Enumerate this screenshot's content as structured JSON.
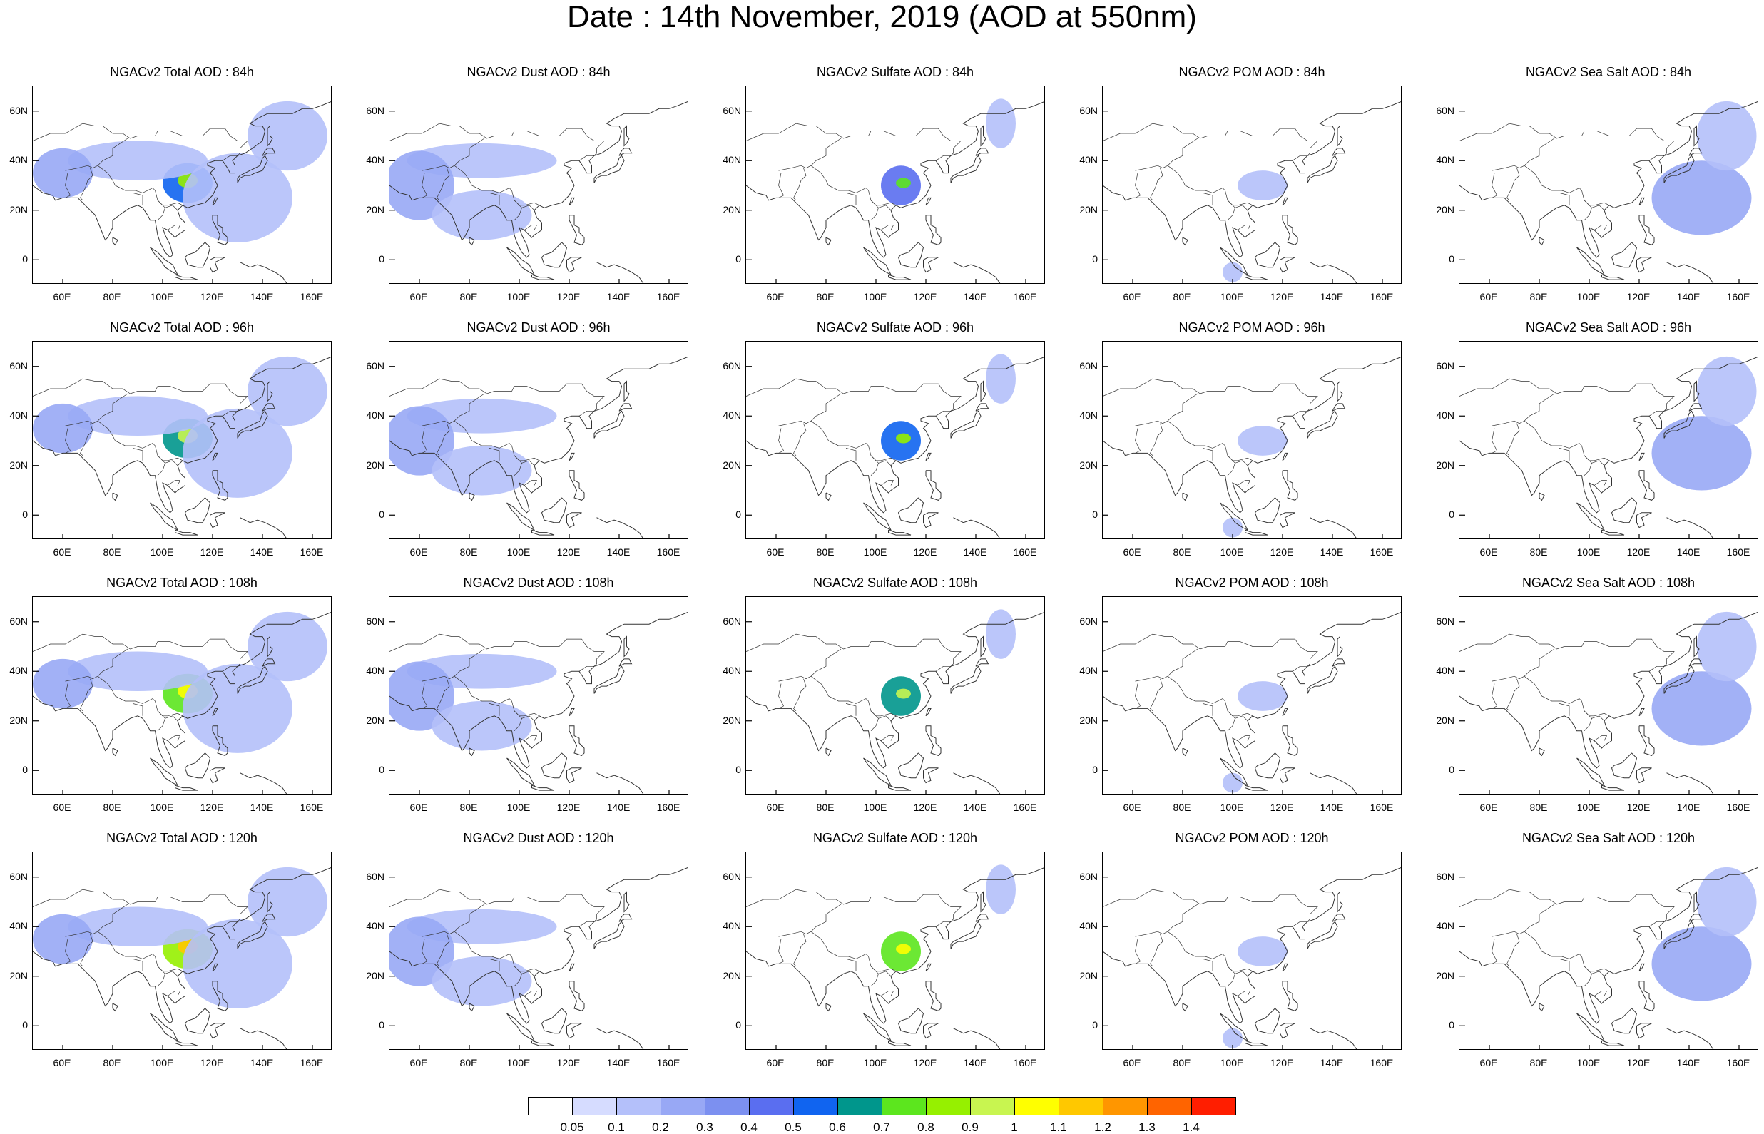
{
  "figure": {
    "title": "Date : 14th November, 2019 (AOD at 550nm)"
  },
  "panels": [
    {
      "title": "NGACv2 Total AOD : 84h",
      "species": "total",
      "hour": 84
    },
    {
      "title": "NGACv2 Dust AOD : 84h",
      "species": "dust",
      "hour": 84
    },
    {
      "title": "NGACv2 Sulfate AOD : 84h",
      "species": "sulfate",
      "hour": 84
    },
    {
      "title": "NGACv2 POM AOD : 84h",
      "species": "pom",
      "hour": 84
    },
    {
      "title": "NGACv2 Sea Salt AOD : 84h",
      "species": "seasalt",
      "hour": 84
    },
    {
      "title": "NGACv2 Total AOD : 96h",
      "species": "total",
      "hour": 96
    },
    {
      "title": "NGACv2 Dust AOD : 96h",
      "species": "dust",
      "hour": 96
    },
    {
      "title": "NGACv2 Sulfate AOD : 96h",
      "species": "sulfate",
      "hour": 96
    },
    {
      "title": "NGACv2 POM AOD : 96h",
      "species": "pom",
      "hour": 96
    },
    {
      "title": "NGACv2 Sea Salt AOD : 96h",
      "species": "seasalt",
      "hour": 96
    },
    {
      "title": "NGACv2 Total AOD : 108h",
      "species": "total",
      "hour": 108
    },
    {
      "title": "NGACv2 Dust AOD : 108h",
      "species": "dust",
      "hour": 108
    },
    {
      "title": "NGACv2 Sulfate AOD : 108h",
      "species": "sulfate",
      "hour": 108
    },
    {
      "title": "NGACv2 POM AOD : 108h",
      "species": "pom",
      "hour": 108
    },
    {
      "title": "NGACv2 Sea Salt AOD : 108h",
      "species": "seasalt",
      "hour": 108
    },
    {
      "title": "NGACv2 Total AOD : 120h",
      "species": "total",
      "hour": 120
    },
    {
      "title": "NGACv2 Dust AOD : 120h",
      "species": "dust",
      "hour": 120
    },
    {
      "title": "NGACv2 Sulfate AOD : 120h",
      "species": "sulfate",
      "hour": 120
    },
    {
      "title": "NGACv2 POM AOD : 120h",
      "species": "pom",
      "hour": 120
    },
    {
      "title": "NGACv2 Sea Salt  AOD : 120h",
      "species": "seasalt",
      "hour": 120
    }
  ],
  "axes": {
    "lat_labels": [
      "60N",
      "40N",
      "20N",
      "0"
    ],
    "lat_values": [
      60,
      40,
      20,
      0
    ],
    "lon_labels": [
      "60E",
      "80E",
      "100E",
      "120E",
      "140E",
      "160E"
    ],
    "lon_values": [
      60,
      80,
      100,
      120,
      140,
      160
    ],
    "lon_range": [
      48,
      168
    ],
    "lat_range": [
      -10,
      70
    ]
  },
  "colorbar": {
    "labels": [
      "0.05",
      "0.1",
      "0.2",
      "0.3",
      "0.4",
      "0.5",
      "0.6",
      "0.7",
      "0.8",
      "0.9",
      "1",
      "1.1",
      "1.2",
      "1.3",
      "1.4"
    ],
    "colors": [
      "#ffffff",
      "#d6dcff",
      "#b4c0fa",
      "#98a8f5",
      "#7c90f0",
      "#5a6ef0",
      "#1064f0",
      "#00968c",
      "#5ce61e",
      "#96f000",
      "#c8f550",
      "#ffff00",
      "#ffc800",
      "#ff9600",
      "#ff6400",
      "#ff1e00"
    ]
  },
  "chart_data": {
    "type": "heatmap",
    "title": "Date : 14th November, 2019 (AOD at 550nm)",
    "variable": "AOD at 550nm",
    "species": [
      "Total",
      "Dust",
      "Sulfate",
      "POM",
      "Sea Salt"
    ],
    "forecast_hours": [
      84,
      96,
      108,
      120
    ],
    "x_range": [
      48,
      168
    ],
    "y_range": [
      -10,
      70
    ],
    "levels": [
      0.05,
      0.1,
      0.2,
      0.3,
      0.4,
      0.5,
      0.6,
      0.7,
      0.8,
      0.9,
      1,
      1.1,
      1.2,
      1.3,
      1.4
    ],
    "features": {
      "total": [
        {
          "lon": 110,
          "lat": 31,
          "rx": 10,
          "ry": 8,
          "value": 0.55
        },
        {
          "lon": 110,
          "lat": 32,
          "rx": 4,
          "ry": 3,
          "value": 0.85
        },
        {
          "lon": 90,
          "lat": 40,
          "rx": 28,
          "ry": 8,
          "value": 0.15
        },
        {
          "lon": 60,
          "lat": 35,
          "rx": 12,
          "ry": 10,
          "value": 0.2
        },
        {
          "lon": 130,
          "lat": 25,
          "rx": 22,
          "ry": 18,
          "value": 0.15
        },
        {
          "lon": 150,
          "lat": 50,
          "rx": 16,
          "ry": 14,
          "value": 0.15
        }
      ],
      "dust": [
        {
          "lon": 85,
          "lat": 40,
          "rx": 30,
          "ry": 7,
          "value": 0.15
        },
        {
          "lon": 60,
          "lat": 30,
          "rx": 14,
          "ry": 14,
          "value": 0.2
        },
        {
          "lon": 85,
          "lat": 18,
          "rx": 20,
          "ry": 10,
          "value": 0.1
        }
      ],
      "sulfate": [
        {
          "lon": 110,
          "lat": 30,
          "rx": 8,
          "ry": 8,
          "value": 0.45
        },
        {
          "lon": 111,
          "lat": 31,
          "rx": 3,
          "ry": 2,
          "value": 0.75
        },
        {
          "lon": 150,
          "lat": 55,
          "rx": 6,
          "ry": 10,
          "value": 0.1
        }
      ],
      "pom": [
        {
          "lon": 112,
          "lat": 30,
          "rx": 10,
          "ry": 6,
          "value": 0.1
        },
        {
          "lon": 100,
          "lat": -5,
          "rx": 4,
          "ry": 4,
          "value": 0.15
        }
      ],
      "seasalt": [
        {
          "lon": 145,
          "lat": 25,
          "rx": 20,
          "ry": 15,
          "value": 0.2
        },
        {
          "lon": 155,
          "lat": 50,
          "rx": 12,
          "ry": 14,
          "value": 0.1
        }
      ]
    }
  }
}
